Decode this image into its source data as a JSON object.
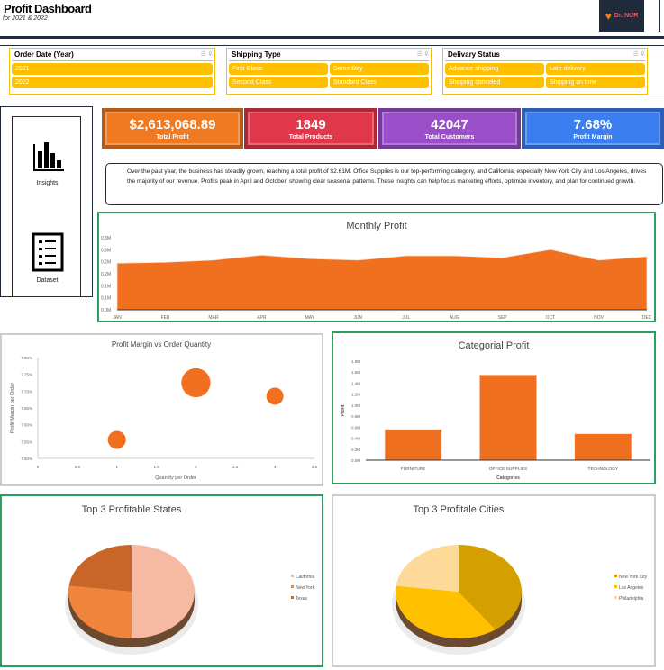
{
  "header": {
    "title": "Profit Dashboard",
    "subtitle": "for 2021 & 2022",
    "logo_text": "Dr. NUR"
  },
  "slicers": [
    {
      "title": "Order Date (Year)",
      "items": [
        "2021",
        "2022"
      ]
    },
    {
      "title": "Shipping Type",
      "items": [
        "First Class",
        "Same Day",
        "Second Class",
        "Standard Class"
      ]
    },
    {
      "title": "Delivary Status",
      "items": [
        "Advance shipping",
        "Late delivery",
        "Shipping canceled",
        "Shipping on time"
      ]
    }
  ],
  "nav": [
    {
      "label": "Insights",
      "icon": "bar-chart-icon"
    },
    {
      "label": "Dataset",
      "icon": "list-icon"
    }
  ],
  "kpis": [
    {
      "value": "$2,613,068.89",
      "label": "Total Profit",
      "color": "#f07a22"
    },
    {
      "value": "1849",
      "label": "Total Products",
      "color": "#e0384a"
    },
    {
      "value": "42047",
      "label": "Total Customers",
      "color": "#9a4ec8"
    },
    {
      "value": "7.68%",
      "label": "Profit Margin",
      "color": "#3a7ef0"
    }
  ],
  "insight": "Over the past year, the business has steadily grown, reaching a total profit of $2.61M. Office Supplies is our top-performing category, and California, especially New York City and Los Angeles, drives the majority of our revenue. Profits peak in April and October, showing clear seasonal patterns. These insights can help focus marketing efforts, optimize inventory, and plan for continued growth.",
  "chart_data": [
    {
      "type": "area",
      "title": "Monthly Profit",
      "categories": [
        "JAN",
        "FEB",
        "MAR",
        "APR",
        "MAY",
        "JUN",
        "JUL",
        "AUG",
        "SEP",
        "OCT",
        "NOV",
        "DEC"
      ],
      "values": [
        0.194,
        0.198,
        0.207,
        0.228,
        0.213,
        0.207,
        0.225,
        0.225,
        0.217,
        0.251,
        0.207,
        0.222
      ],
      "unit": "M",
      "ylim": [
        0,
        0.3
      ],
      "yticks": [
        "0.0M",
        "0.1M",
        "0.1M",
        "0.2M",
        "0.2M",
        "0.3M",
        "0.3M"
      ],
      "color": "#f07020"
    },
    {
      "type": "scatter",
      "title": "Profit Margin vs Order Quantity",
      "xlabel": "Quantity per Order",
      "ylabel": "Profit Margin per Order",
      "xlim": [
        0,
        3.5
      ],
      "ylim": [
        7.5,
        7.8
      ],
      "xticks": [
        "0",
        "0.5",
        "1",
        "1.5",
        "2",
        "2.5",
        "3",
        "3.5"
      ],
      "yticks": [
        "7.50%",
        "7.55%",
        "7.60%",
        "7.65%",
        "7.70%",
        "7.75%",
        "7.80%"
      ],
      "points": [
        {
          "x": 1,
          "y": 7.555,
          "size": 1
        },
        {
          "x": 2,
          "y": 7.725,
          "size": 2.6
        },
        {
          "x": 3,
          "y": 7.685,
          "size": 0.9
        }
      ],
      "color": "#f07020"
    },
    {
      "type": "bar",
      "title": "Categorial Profit",
      "xlabel": "Categories",
      "ylabel": "Profit",
      "categories": [
        "FURNITURE",
        "OFFICE SUPPLIES",
        "TECHNOLOGY"
      ],
      "values": [
        0.56,
        1.55,
        0.48
      ],
      "unit": "M",
      "ylim": [
        0,
        1.8
      ],
      "yticks": [
        "0.0M",
        "0.2M",
        "0.4M",
        "0.6M",
        "0.8M",
        "1.0M",
        "1.2M",
        "1.4M",
        "1.6M",
        "1.8M"
      ],
      "color": "#f07020"
    },
    {
      "type": "pie",
      "title": "Top 3 Profitable States",
      "labels": [
        "California",
        "New York",
        "Texas"
      ],
      "values": [
        50,
        27,
        23
      ],
      "colors": [
        "#f6b9a2",
        "#f0843a",
        "#c8662a"
      ],
      "legend": "right"
    },
    {
      "type": "pie",
      "title": "Top 3 Profitale Cities",
      "labels": [
        "New York City",
        "Los Angeles",
        "Philadelphia"
      ],
      "values": [
        40,
        37,
        23
      ],
      "colors": [
        "#d4a000",
        "#ffc000",
        "#fdd99a"
      ],
      "legend": "right"
    }
  ]
}
